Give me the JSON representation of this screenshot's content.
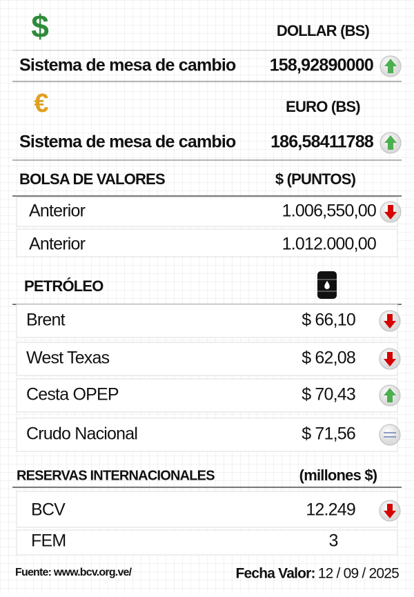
{
  "currencies": [
    {
      "symbol": "$",
      "header": "DOLLAR (BS)",
      "label": "Sistema de mesa de cambio",
      "value": "158,92890000",
      "trend": "up"
    },
    {
      "symbol": "€",
      "header": "EURO (BS)",
      "label": "Sistema de mesa de cambio",
      "value": "186,58411788",
      "trend": "up"
    }
  ],
  "stock": {
    "header": "BOLSA DE VALORES",
    "unit": "$ (PUNTOS)",
    "rows": [
      {
        "label": "Anterior",
        "value": "1.006,550,00",
        "trend": "down"
      },
      {
        "label": "Anterior",
        "value": "1.012.000,00"
      }
    ]
  },
  "oil": {
    "header": "PETRÓLEO",
    "rows": [
      {
        "label": "Brent",
        "value": "$ 66,10",
        "trend": "down"
      },
      {
        "label": "West Texas",
        "value": "$ 62,08",
        "trend": "down"
      },
      {
        "label": "Cesta OPEP",
        "value": "$ 70,43",
        "trend": "up"
      },
      {
        "label": "Crudo Nacional",
        "value": "$ 71,56",
        "trend": "equal"
      }
    ]
  },
  "reserves": {
    "header": "RESERVAS INTERNACIONALES",
    "unit": "(millones $)",
    "rows": [
      {
        "label": "BCV",
        "value": "12.249",
        "trend": "down"
      },
      {
        "label": "FEM",
        "value": "3"
      }
    ]
  },
  "footer": {
    "source": "Fuente: www.bcv.org.ve/",
    "date_label": "Fecha Valor:",
    "date": "12 / 09 / 2025"
  }
}
